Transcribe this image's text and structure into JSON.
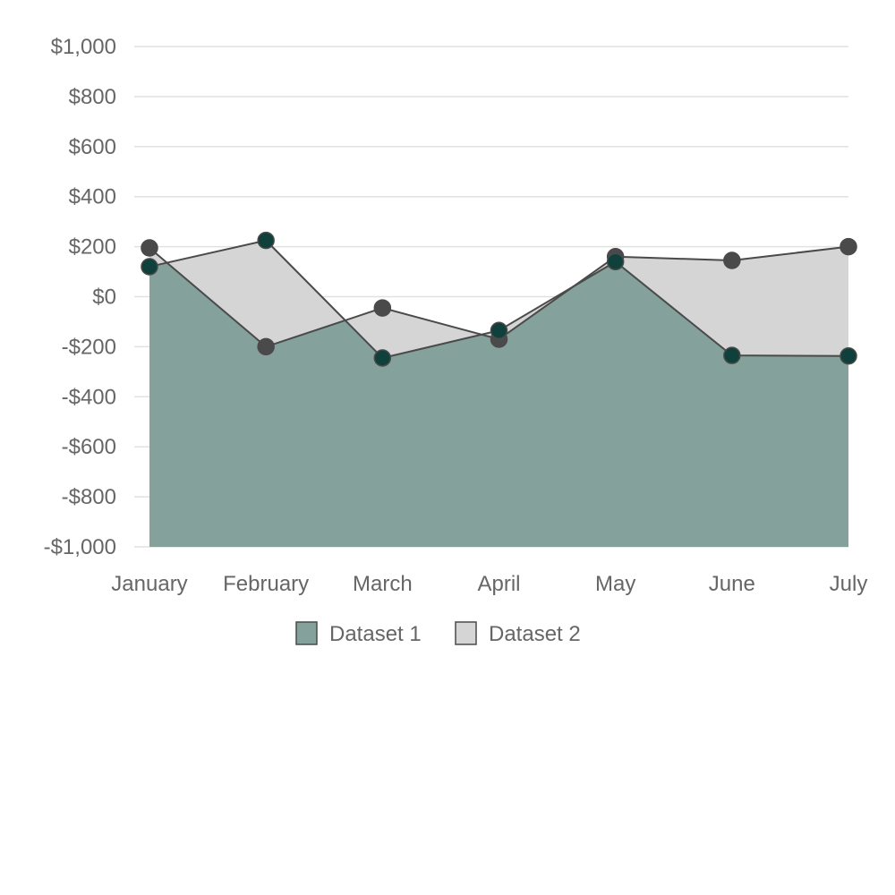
{
  "chart_data": {
    "type": "area",
    "categories": [
      "January",
      "February",
      "March",
      "April",
      "May",
      "June",
      "July"
    ],
    "y_tick_labels": [
      "$1,000",
      "$800",
      "$600",
      "$400",
      "$200",
      "$0",
      "-$200",
      "-$400",
      "-$600",
      "-$800",
      "-$1,000"
    ],
    "ylim": [
      -1000,
      1000
    ],
    "grid": true,
    "legend_position": "bottom",
    "series": [
      {
        "name": "Dataset 1",
        "values": [
          120,
          225,
          -245,
          -135,
          140,
          -235,
          -237
        ],
        "fill_color": "#85a19b",
        "line_color": "#4a4a4a",
        "point_color": "#0f403b",
        "fill_to": "origin"
      },
      {
        "name": "Dataset 2",
        "values": [
          195,
          -200,
          -45,
          -170,
          160,
          145,
          200
        ],
        "fill_color": "#d6d5d5",
        "line_color": "#4a4a4a",
        "point_color": "#4a4a4a",
        "fill_to": "previous-dataset"
      }
    ]
  }
}
